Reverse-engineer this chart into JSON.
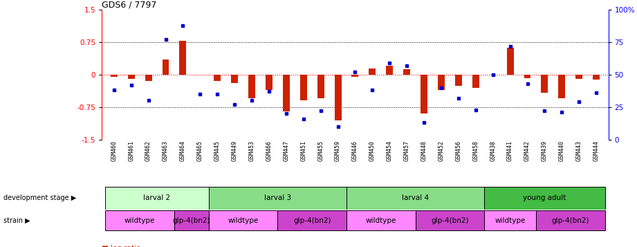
{
  "title": "GDS6 / 7797",
  "samples": [
    "GSM460",
    "GSM461",
    "GSM462",
    "GSM463",
    "GSM464",
    "GSM465",
    "GSM445",
    "GSM449",
    "GSM453",
    "GSM466",
    "GSM447",
    "GSM451",
    "GSM455",
    "GSM459",
    "GSM446",
    "GSM450",
    "GSM454",
    "GSM457",
    "GSM448",
    "GSM452",
    "GSM456",
    "GSM458",
    "GSM438",
    "GSM441",
    "GSM442",
    "GSM439",
    "GSM440",
    "GSM443",
    "GSM444"
  ],
  "log_ratio": [
    -0.05,
    -0.1,
    -0.15,
    0.35,
    0.78,
    0.0,
    -0.15,
    -0.2,
    -0.55,
    -0.35,
    -0.85,
    -0.6,
    -0.55,
    -1.05,
    -0.05,
    0.15,
    0.2,
    0.12,
    -0.9,
    -0.35,
    -0.25,
    -0.3,
    0.0,
    0.62,
    -0.08,
    -0.42,
    -0.55,
    -0.1,
    -0.12
  ],
  "percentile": [
    38,
    42,
    30,
    77,
    88,
    35,
    35,
    27,
    30,
    37,
    20,
    16,
    22,
    10,
    52,
    38,
    59,
    57,
    13,
    40,
    32,
    23,
    50,
    72,
    43,
    22,
    21,
    29,
    36
  ],
  "dev_stages": [
    {
      "label": "larval 2",
      "start": 0,
      "end": 6,
      "color": "#ccffcc"
    },
    {
      "label": "larval 3",
      "start": 6,
      "end": 14,
      "color": "#88dd88"
    },
    {
      "label": "larval 4",
      "start": 14,
      "end": 22,
      "color": "#88dd88"
    },
    {
      "label": "young adult",
      "start": 22,
      "end": 29,
      "color": "#44bb44"
    }
  ],
  "strains": [
    {
      "label": "wildtype",
      "start": 0,
      "end": 4,
      "color": "#ff88ff"
    },
    {
      "label": "glp-4(bn2)",
      "start": 4,
      "end": 6,
      "color": "#cc44cc"
    },
    {
      "label": "wildtype",
      "start": 6,
      "end": 10,
      "color": "#ff88ff"
    },
    {
      "label": "glp-4(bn2)",
      "start": 10,
      "end": 14,
      "color": "#cc44cc"
    },
    {
      "label": "wildtype",
      "start": 14,
      "end": 18,
      "color": "#ff88ff"
    },
    {
      "label": "glp-4(bn2)",
      "start": 18,
      "end": 22,
      "color": "#cc44cc"
    },
    {
      "label": "wildtype",
      "start": 22,
      "end": 25,
      "color": "#ff88ff"
    },
    {
      "label": "glp-4(bn2)",
      "start": 25,
      "end": 29,
      "color": "#cc44cc"
    }
  ],
  "ylim": [
    -1.5,
    1.5
  ],
  "yticks": [
    -1.5,
    -0.75,
    0.0,
    0.75,
    1.5
  ],
  "bar_color": "#cc2200",
  "dot_color": "#0000cc",
  "title_fontsize": 9
}
